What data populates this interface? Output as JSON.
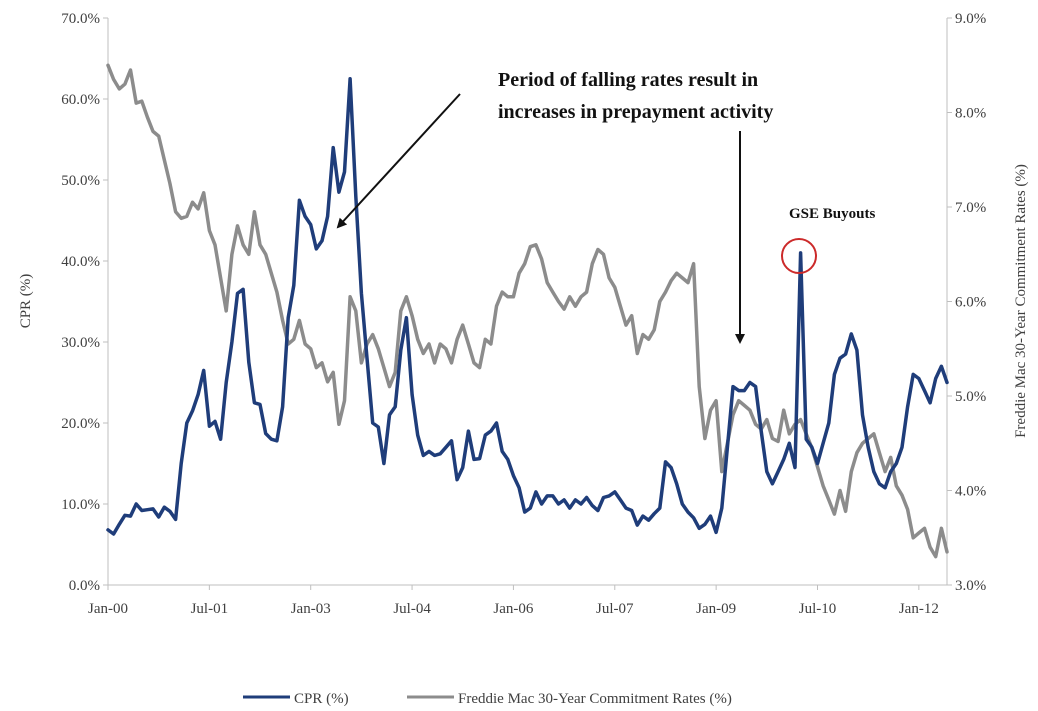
{
  "chart_data": {
    "type": "line",
    "x_tick_labels": [
      "Jan-00",
      "Jul-01",
      "Jan-03",
      "Jul-04",
      "Jan-06",
      "Jul-07",
      "Jan-09",
      "Jul-10",
      "Jan-12"
    ],
    "y_left": {
      "label": "CPR (%)",
      "ylim": [
        0,
        70
      ],
      "ticks": [
        "0.0%",
        "10.0%",
        "20.0%",
        "30.0%",
        "40.0%",
        "50.0%",
        "60.0%",
        "70.0%"
      ]
    },
    "y_right": {
      "label": "Freddie Mac 30-Year Commitment Rates (%)",
      "ylim": [
        3,
        9
      ],
      "ticks": [
        "3.0%",
        "4.0%",
        "5.0%",
        "6.0%",
        "7.0%",
        "8.0%",
        "9.0%"
      ]
    },
    "grid": false,
    "legend_position": "bottom-center",
    "annotations": {
      "falling_rates_line1": "Period of falling rates result in",
      "falling_rates_line2": "increases in prepayment activity",
      "gse_buyouts": "GSE Buyouts"
    },
    "series": [
      {
        "name": "CPR (%)",
        "axis": "left",
        "color": "#1f3d7a",
        "points": [
          [
            0,
            6.8
          ],
          [
            1,
            6.3
          ],
          [
            2,
            7.5
          ],
          [
            3,
            8.6
          ],
          [
            4,
            8.5
          ],
          [
            5,
            10
          ],
          [
            6,
            9.2
          ],
          [
            7,
            9.3
          ],
          [
            8,
            9.4
          ],
          [
            9,
            8.4
          ],
          [
            10,
            9.6
          ],
          [
            11,
            9.1
          ],
          [
            12,
            8.1
          ],
          [
            13,
            15
          ],
          [
            14,
            20
          ],
          [
            15,
            21.5
          ],
          [
            16,
            23.5
          ],
          [
            17,
            26.5
          ],
          [
            18,
            19.6
          ],
          [
            19,
            20.2
          ],
          [
            20,
            18
          ],
          [
            21,
            25
          ],
          [
            22,
            30
          ],
          [
            23,
            36
          ],
          [
            24,
            36.5
          ],
          [
            25,
            27.5
          ],
          [
            26,
            22.5
          ],
          [
            27,
            22.3
          ],
          [
            28,
            18.7
          ],
          [
            29,
            18
          ],
          [
            30,
            17.8
          ],
          [
            31,
            22
          ],
          [
            32,
            33
          ],
          [
            33,
            37
          ],
          [
            34,
            47.5
          ],
          [
            35,
            45.5
          ],
          [
            36,
            44.5
          ],
          [
            37,
            41.5
          ],
          [
            38,
            42.5
          ],
          [
            39,
            45.5
          ],
          [
            40,
            54
          ],
          [
            41,
            48.5
          ],
          [
            42,
            51
          ],
          [
            43,
            62.5
          ],
          [
            44,
            48
          ],
          [
            45,
            36
          ],
          [
            46,
            28
          ],
          [
            47,
            20
          ],
          [
            48,
            19.5
          ],
          [
            49,
            15
          ],
          [
            50,
            21
          ],
          [
            51,
            22
          ],
          [
            52,
            29
          ],
          [
            53,
            33
          ],
          [
            54,
            23.5
          ],
          [
            55,
            18.5
          ],
          [
            56,
            16
          ],
          [
            57,
            16.5
          ],
          [
            58,
            16
          ],
          [
            59,
            16.2
          ],
          [
            60,
            17
          ],
          [
            61,
            17.8
          ],
          [
            62,
            13
          ],
          [
            63,
            14.5
          ],
          [
            64,
            19
          ],
          [
            65,
            15.5
          ],
          [
            66,
            15.6
          ],
          [
            67,
            18.5
          ],
          [
            68,
            19
          ],
          [
            69,
            20
          ],
          [
            70,
            16.5
          ],
          [
            71,
            15.5
          ],
          [
            72,
            13.5
          ],
          [
            73,
            12
          ],
          [
            74,
            9
          ],
          [
            75,
            9.5
          ],
          [
            76,
            11.5
          ],
          [
            77,
            10
          ],
          [
            78,
            11
          ],
          [
            79,
            11
          ],
          [
            80,
            10
          ],
          [
            81,
            10.5
          ],
          [
            82,
            9.5
          ],
          [
            83,
            10.5
          ],
          [
            84,
            10
          ],
          [
            85,
            10.8
          ],
          [
            86,
            9.8
          ],
          [
            87,
            9.2
          ],
          [
            88,
            10.8
          ],
          [
            89,
            11
          ],
          [
            90,
            11.5
          ],
          [
            91,
            10.5
          ],
          [
            92,
            9.5
          ],
          [
            93,
            9.2
          ],
          [
            94,
            7.4
          ],
          [
            95,
            8.5
          ],
          [
            96,
            8
          ],
          [
            97,
            8.8
          ],
          [
            98,
            9.5
          ],
          [
            99,
            15.2
          ],
          [
            100,
            14.5
          ],
          [
            101,
            12.5
          ],
          [
            102,
            10
          ],
          [
            103,
            9
          ],
          [
            104,
            8.3
          ],
          [
            105,
            7
          ],
          [
            106,
            7.5
          ],
          [
            107,
            8.5
          ],
          [
            108,
            6.5
          ],
          [
            109,
            9.5
          ],
          [
            110,
            17
          ],
          [
            111,
            24.5
          ],
          [
            112,
            24
          ],
          [
            113,
            24
          ],
          [
            114,
            25
          ],
          [
            115,
            24.5
          ],
          [
            116,
            19
          ],
          [
            117,
            14
          ],
          [
            118,
            12.5
          ],
          [
            119,
            14
          ],
          [
            120,
            15.5
          ],
          [
            121,
            17.5
          ],
          [
            122,
            14.5
          ],
          [
            123,
            41
          ],
          [
            124,
            18
          ],
          [
            125,
            17
          ],
          [
            126,
            15
          ],
          [
            127,
            17.5
          ],
          [
            128,
            20
          ],
          [
            129,
            26
          ],
          [
            130,
            28
          ],
          [
            131,
            28.5
          ],
          [
            132,
            31
          ],
          [
            133,
            29
          ],
          [
            134,
            21
          ],
          [
            135,
            17
          ],
          [
            136,
            14
          ],
          [
            137,
            12.5
          ],
          [
            138,
            12
          ],
          [
            139,
            14
          ],
          [
            140,
            15
          ],
          [
            141,
            17
          ],
          [
            142,
            22
          ],
          [
            143,
            26
          ],
          [
            144,
            25.5
          ],
          [
            145,
            24
          ],
          [
            146,
            22.5
          ],
          [
            147,
            25.5
          ],
          [
            148,
            27
          ],
          [
            149,
            25
          ]
        ]
      },
      {
        "name": "Freddie Mac 30-Year Commitment Rates (%)",
        "axis": "right",
        "color": "#8c8c8c",
        "points": [
          [
            0,
            8.5
          ],
          [
            1,
            8.35
          ],
          [
            2,
            8.25
          ],
          [
            3,
            8.3
          ],
          [
            4,
            8.45
          ],
          [
            5,
            8.1
          ],
          [
            6,
            8.12
          ],
          [
            7,
            7.95
          ],
          [
            8,
            7.8
          ],
          [
            9,
            7.75
          ],
          [
            10,
            7.5
          ],
          [
            11,
            7.25
          ],
          [
            12,
            6.95
          ],
          [
            13,
            6.88
          ],
          [
            14,
            6.9
          ],
          [
            15,
            7.05
          ],
          [
            16,
            6.98
          ],
          [
            17,
            7.15
          ],
          [
            18,
            6.75
          ],
          [
            19,
            6.6
          ],
          [
            20,
            6.25
          ],
          [
            21,
            5.9
          ],
          [
            22,
            6.5
          ],
          [
            23,
            6.8
          ],
          [
            24,
            6.6
          ],
          [
            25,
            6.5
          ],
          [
            26,
            6.95
          ],
          [
            27,
            6.6
          ],
          [
            28,
            6.5
          ],
          [
            29,
            6.3
          ],
          [
            30,
            6.1
          ],
          [
            31,
            5.8
          ],
          [
            32,
            5.55
          ],
          [
            33,
            5.6
          ],
          [
            34,
            5.8
          ],
          [
            35,
            5.55
          ],
          [
            36,
            5.5
          ],
          [
            37,
            5.3
          ],
          [
            38,
            5.35
          ],
          [
            39,
            5.15
          ],
          [
            40,
            5.25
          ],
          [
            41,
            4.7
          ],
          [
            42,
            4.95
          ],
          [
            43,
            6.05
          ],
          [
            44,
            5.9
          ],
          [
            45,
            5.35
          ],
          [
            46,
            5.55
          ],
          [
            47,
            5.65
          ],
          [
            48,
            5.5
          ],
          [
            49,
            5.3
          ],
          [
            50,
            5.1
          ],
          [
            51,
            5.25
          ],
          [
            52,
            5.9
          ],
          [
            53,
            6.05
          ],
          [
            54,
            5.85
          ],
          [
            55,
            5.6
          ],
          [
            56,
            5.45
          ],
          [
            57,
            5.55
          ],
          [
            58,
            5.35
          ],
          [
            59,
            5.55
          ],
          [
            60,
            5.5
          ],
          [
            61,
            5.35
          ],
          [
            62,
            5.6
          ],
          [
            63,
            5.75
          ],
          [
            64,
            5.55
          ],
          [
            65,
            5.35
          ],
          [
            66,
            5.3
          ],
          [
            67,
            5.6
          ],
          [
            68,
            5.55
          ],
          [
            69,
            5.95
          ],
          [
            70,
            6.1
          ],
          [
            71,
            6.05
          ],
          [
            72,
            6.05
          ],
          [
            73,
            6.3
          ],
          [
            74,
            6.4
          ],
          [
            75,
            6.58
          ],
          [
            76,
            6.6
          ],
          [
            77,
            6.45
          ],
          [
            78,
            6.2
          ],
          [
            79,
            6.1
          ],
          [
            80,
            6.0
          ],
          [
            81,
            5.92
          ],
          [
            82,
            6.05
          ],
          [
            83,
            5.95
          ],
          [
            84,
            6.05
          ],
          [
            85,
            6.1
          ],
          [
            86,
            6.4
          ],
          [
            87,
            6.55
          ],
          [
            88,
            6.5
          ],
          [
            89,
            6.25
          ],
          [
            90,
            6.15
          ],
          [
            91,
            5.95
          ],
          [
            92,
            5.75
          ],
          [
            93,
            5.85
          ],
          [
            94,
            5.45
          ],
          [
            95,
            5.65
          ],
          [
            96,
            5.6
          ],
          [
            97,
            5.7
          ],
          [
            98,
            6.0
          ],
          [
            99,
            6.1
          ],
          [
            100,
            6.22
          ],
          [
            101,
            6.3
          ],
          [
            102,
            6.25
          ],
          [
            103,
            6.2
          ],
          [
            104,
            6.4
          ],
          [
            105,
            5.1
          ],
          [
            106,
            4.55
          ],
          [
            107,
            4.85
          ],
          [
            108,
            4.95
          ],
          [
            109,
            4.2
          ],
          [
            110,
            4.5
          ],
          [
            111,
            4.8
          ],
          [
            112,
            4.95
          ],
          [
            113,
            4.9
          ],
          [
            114,
            4.85
          ],
          [
            115,
            4.7
          ],
          [
            116,
            4.65
          ],
          [
            117,
            4.75
          ],
          [
            118,
            4.55
          ],
          [
            119,
            4.52
          ],
          [
            120,
            4.85
          ],
          [
            121,
            4.6
          ],
          [
            122,
            4.7
          ],
          [
            123,
            4.75
          ],
          [
            124,
            4.6
          ],
          [
            125,
            4.45
          ],
          [
            126,
            4.25
          ],
          [
            127,
            4.05
          ],
          [
            128,
            3.9
          ],
          [
            129,
            3.75
          ],
          [
            130,
            4.0
          ],
          [
            131,
            3.78
          ],
          [
            132,
            4.2
          ],
          [
            133,
            4.4
          ],
          [
            134,
            4.5
          ],
          [
            135,
            4.55
          ],
          [
            136,
            4.6
          ],
          [
            137,
            4.4
          ],
          [
            138,
            4.2
          ],
          [
            139,
            4.35
          ],
          [
            140,
            4.05
          ],
          [
            141,
            3.95
          ],
          [
            142,
            3.8
          ],
          [
            143,
            3.5
          ],
          [
            144,
            3.55
          ],
          [
            145,
            3.6
          ],
          [
            146,
            3.4
          ],
          [
            147,
            3.3
          ],
          [
            148,
            3.6
          ],
          [
            149,
            3.35
          ]
        ]
      }
    ]
  }
}
